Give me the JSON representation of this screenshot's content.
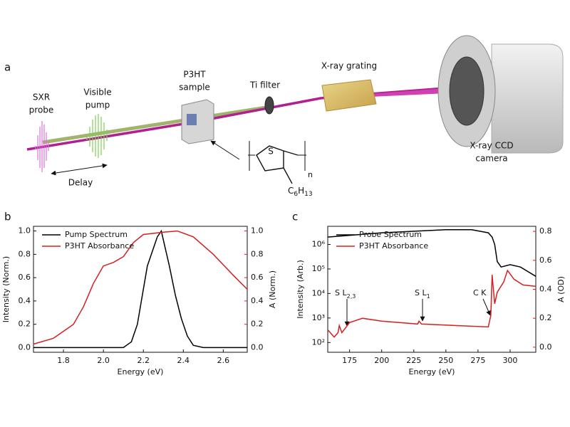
{
  "panel_a": {
    "letter": "a",
    "sxr_probe": [
      "SXR",
      "probe"
    ],
    "visible_pump": [
      "Visible",
      "pump"
    ],
    "delay": "Delay",
    "sample": [
      "P3HT",
      "sample"
    ],
    "ti_filter": "Ti filter",
    "grating": "X-ray grating",
    "camera": [
      "X-ray CCD",
      "camera"
    ],
    "molecule": {
      "atom": "S",
      "repeat": "n",
      "side_chain": {
        "c": "C",
        "c_sub": "6",
        "h": "H",
        "h_sub": "13"
      }
    }
  },
  "panel_b": {
    "letter": "b"
  },
  "panel_c": {
    "letter": "c"
  },
  "chart_data": [
    {
      "type": "line",
      "xlabel": "Energy (eV)",
      "ylabel": "Intensity (Norm.)",
      "y2label": "A (Norm.)",
      "xlim": [
        1.65,
        2.72
      ],
      "xticks": [
        1.8,
        {
          "value": 2,
          "label": "2.0"
        },
        2.2,
        2.4,
        2.6
      ],
      "ylim": [
        -0.04,
        1.04
      ],
      "yticks": [
        {
          "value": 0,
          "label": "0.0"
        },
        0.2,
        0.4,
        0.6,
        0.8,
        {
          "value": 1,
          "label": "1.0"
        }
      ],
      "y2lim": [
        -0.04,
        1.04
      ],
      "y2ticks": [
        {
          "value": 0,
          "label": "0.0"
        },
        0.2,
        0.4,
        0.6,
        0.8,
        {
          "value": 1,
          "label": "1.0"
        }
      ],
      "legend": "upper left",
      "series": [
        {
          "name": "Pump Spectrum",
          "color": "#000000",
          "x": [
            1.65,
            2.1,
            2.14,
            2.17,
            2.2,
            2.22,
            2.25,
            2.27,
            2.29,
            2.31,
            2.33,
            2.36,
            2.39,
            2.42,
            2.45,
            2.5,
            2.72
          ],
          "values": [
            0,
            0,
            0.05,
            0.2,
            0.5,
            0.7,
            0.85,
            0.95,
            1.0,
            0.85,
            0.7,
            0.45,
            0.25,
            0.1,
            0.02,
            0,
            0
          ]
        },
        {
          "name": "P3HT Absorbance",
          "color": "#d62020",
          "axis": "y2",
          "x": [
            1.65,
            1.75,
            1.85,
            1.9,
            1.95,
            2.0,
            2.05,
            2.1,
            2.15,
            2.2,
            2.3,
            2.37,
            2.45,
            2.55,
            2.65,
            2.72
          ],
          "values": [
            0.03,
            0.08,
            0.2,
            0.35,
            0.55,
            0.7,
            0.73,
            0.78,
            0.9,
            0.97,
            0.99,
            1.0,
            0.95,
            0.8,
            0.62,
            0.5
          ]
        }
      ]
    },
    {
      "type": "line",
      "xlabel": "Energy (eV)",
      "ylabel": "Intensity (Arb.)",
      "y2label": "A (OD)",
      "xlim": [
        158,
        320
      ],
      "xticks": [
        175,
        200,
        225,
        250,
        275,
        300
      ],
      "ylog": true,
      "ylim": [
        40,
        5500000
      ],
      "yticks": [
        {
          "value": 100,
          "label": "10²"
        },
        {
          "value": 1000,
          "label": "10³"
        },
        {
          "value": 10000,
          "label": "10⁴"
        },
        {
          "value": 100000,
          "label": "10⁵"
        },
        {
          "value": 1000000,
          "label": "10⁶"
        }
      ],
      "y2lim": [
        -0.035,
        0.835
      ],
      "y2ticks": [
        {
          "value": 0,
          "label": "0.0"
        },
        0.2,
        0.4,
        0.6,
        0.8
      ],
      "legend": "upper left",
      "annotations": [
        {
          "text": "S L",
          "sub": "2,3"
        },
        {
          "text": "S L",
          "sub": "1"
        },
        {
          "text": "C K"
        }
      ],
      "series": [
        {
          "name": "Probe Spectrum",
          "color": "#000000",
          "x": [
            158,
            200,
            250,
            270,
            283,
            286,
            288,
            290,
            293,
            300,
            308,
            320
          ],
          "values": [
            2000000,
            3000000,
            4000000,
            4000000,
            3000000,
            2000000,
            1000000,
            200000,
            120000,
            150000,
            120000,
            50000
          ]
        },
        {
          "name": "P3HT Absorbance",
          "color": "#d62020",
          "axis": "y2",
          "x": [
            158,
            163,
            166,
            167,
            169,
            175,
            185,
            200,
            228,
            229,
            231,
            283,
            285,
            286,
            288,
            290,
            295,
            298,
            303,
            310,
            320
          ],
          "values": [
            0.12,
            0.07,
            0.1,
            0.15,
            0.1,
            0.17,
            0.2,
            0.18,
            0.16,
            0.18,
            0.16,
            0.14,
            0.22,
            0.5,
            0.3,
            0.38,
            0.45,
            0.53,
            0.47,
            0.43,
            0.42
          ]
        }
      ]
    }
  ]
}
